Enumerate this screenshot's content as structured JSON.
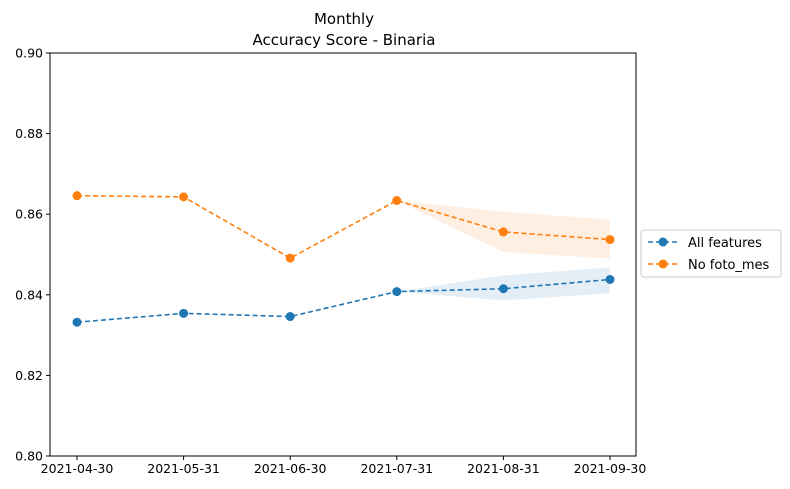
{
  "chart_data": {
    "type": "line",
    "title": "Monthly",
    "subtitle": "Accuracy Score - Binaria",
    "categories": [
      "2021-04-30",
      "2021-05-31",
      "2021-06-30",
      "2021-07-31",
      "2021-08-31",
      "2021-09-30"
    ],
    "ylim": [
      0.8,
      0.9
    ],
    "yticks": [
      "0.80",
      "0.82",
      "0.84",
      "0.86",
      "0.88",
      "0.90"
    ],
    "legend_position": "right",
    "grid": false,
    "series": [
      {
        "name": "All features",
        "color": "#1f77b4",
        "values": [
          0.8332,
          0.8354,
          0.8346,
          0.8408,
          0.8415,
          0.8438
        ],
        "band_lower": [
          null,
          null,
          null,
          0.8408,
          0.8386,
          0.8404
        ],
        "band_upper": [
          null,
          null,
          null,
          0.8408,
          0.8448,
          0.8468
        ]
      },
      {
        "name": "No foto_mes",
        "color": "#ff7f0e",
        "values": [
          0.8646,
          0.8643,
          0.8491,
          0.8634,
          0.8556,
          0.8537
        ],
        "band_lower": [
          null,
          null,
          null,
          0.8634,
          0.8506,
          0.849
        ],
        "band_upper": [
          null,
          null,
          null,
          0.8634,
          0.8606,
          0.8587
        ]
      }
    ]
  }
}
